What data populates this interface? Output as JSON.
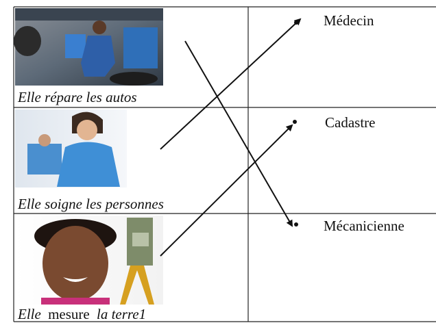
{
  "table": {
    "rows": [
      {
        "caption": "Elle répare les autos",
        "answer": "Médecin"
      },
      {
        "caption": "Elle soigne les personnes",
        "answer": "Cadastre"
      },
      {
        "caption_parts": [
          "Elle",
          "mesure",
          "la terre1"
        ],
        "answer": "Mécanicienne"
      }
    ]
  }
}
